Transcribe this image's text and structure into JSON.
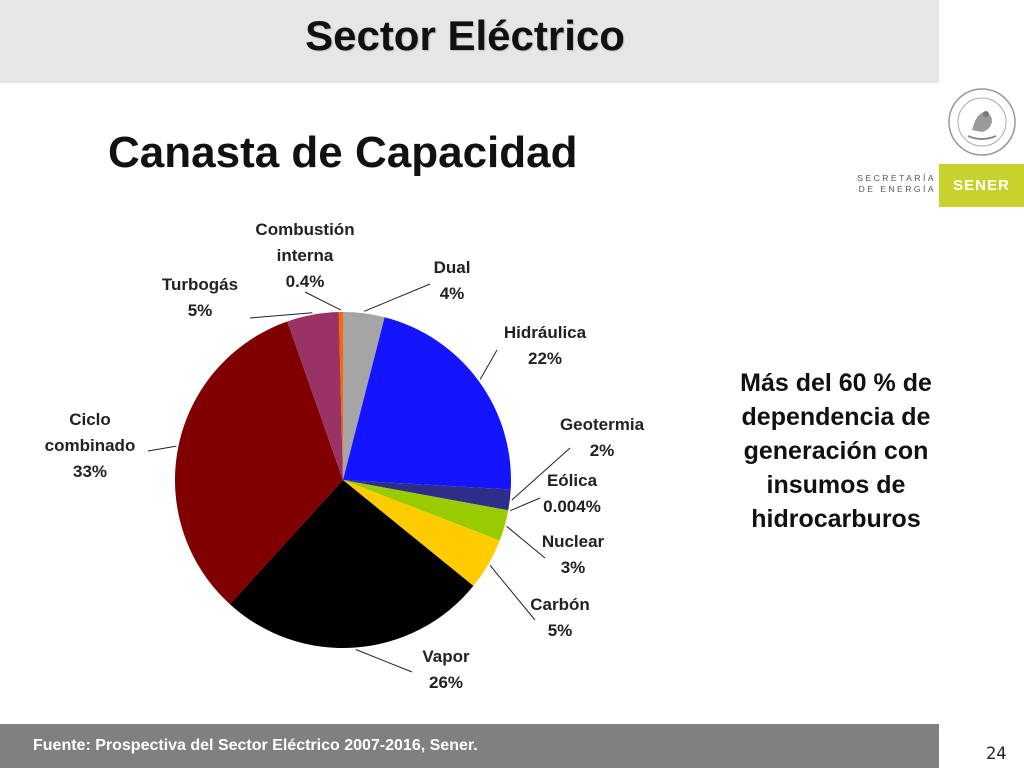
{
  "header": {
    "title": "Sector Eléctrico"
  },
  "slide": {
    "title": "Canasta de Capacidad"
  },
  "logo": {
    "secretaria_line1": "SECRETARÍA",
    "secretaria_line2": "DE ENERGÍA",
    "brand": "SENER",
    "seal_text": "ESTADOS UNIDOS MEXICANOS",
    "brand_color": "#c8d22c"
  },
  "note": {
    "lines": [
      "Más del 60 % de",
      "dependencia de",
      "generación con",
      "insumos de",
      "hidrocarburos"
    ]
  },
  "footer": {
    "source": "Fuente: Prospectiva del Sector Eléctrico 2007-2016, Sener.",
    "page": "24"
  },
  "chart_data": {
    "type": "pie",
    "title": "",
    "start_angle_deg": 0,
    "slices": [
      {
        "name": "Dual",
        "value": 4,
        "label_lines": [
          "Dual",
          "4%"
        ],
        "color": "#a5a5a5"
      },
      {
        "name": "Hidráulica",
        "value": 22,
        "label_lines": [
          "Hidráulica",
          "22%"
        ],
        "color": "#1414ff"
      },
      {
        "name": "Geotermia",
        "value": 2,
        "label_lines": [
          "Geotermia",
          "2%"
        ],
        "color": "#2e2e8a"
      },
      {
        "name": "Eólica",
        "value": 0.004,
        "label_lines": [
          "Eólica",
          "0.004%"
        ],
        "color": "#339933"
      },
      {
        "name": "Nuclear",
        "value": 3,
        "label_lines": [
          "Nuclear",
          "3%"
        ],
        "color": "#99cc00"
      },
      {
        "name": "Carbón",
        "value": 5,
        "label_lines": [
          "Carbón",
          "5%"
        ],
        "color": "#ffcc00"
      },
      {
        "name": "Vapor",
        "value": 26,
        "label_lines": [
          "Vapor",
          "26%"
        ],
        "color": "#000000"
      },
      {
        "name": "Ciclo combinado",
        "value": 33,
        "label_lines": [
          "Ciclo",
          "combinado",
          "33%"
        ],
        "color": "#800000"
      },
      {
        "name": "Turbogás",
        "value": 5,
        "label_lines": [
          "Turbogás",
          "5%"
        ],
        "color": "#993366"
      },
      {
        "name": "Combustión interna",
        "value": 0.4,
        "label_lines": [
          "Combustión",
          "interna",
          "0.4%"
        ],
        "color": "#ff6600"
      }
    ]
  }
}
